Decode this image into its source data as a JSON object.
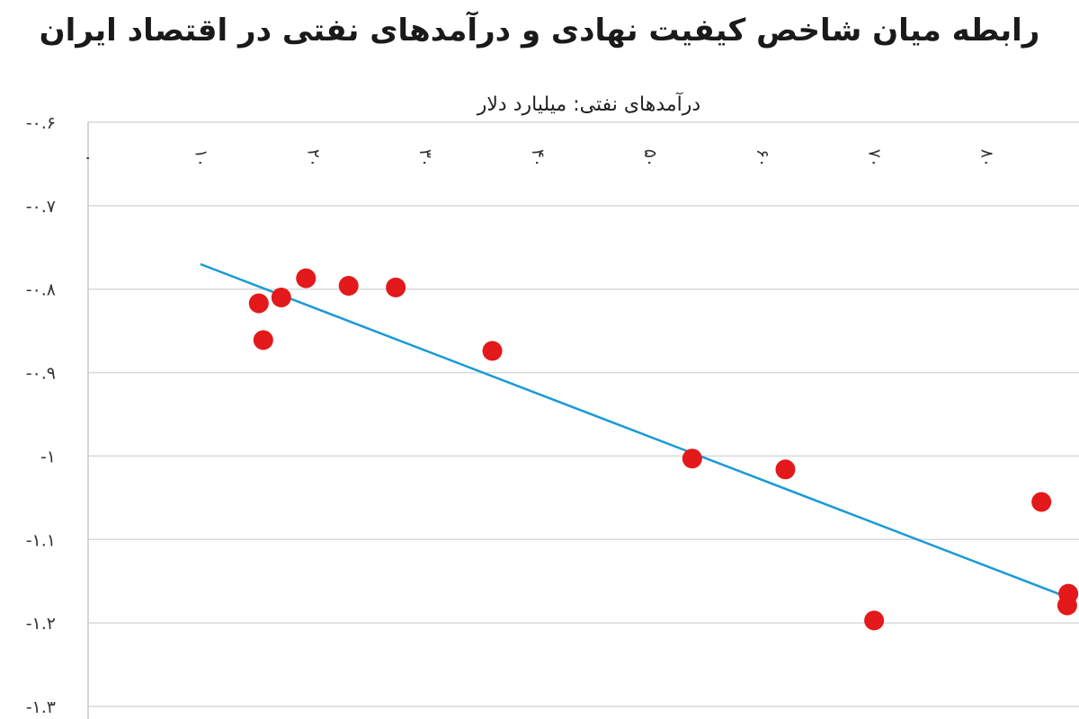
{
  "chart_data": {
    "type": "scatter",
    "title": "رابطه میان شاخص کیفیت نهادی و درآمدهای نفتی در اقتصاد ایران",
    "xlabel": "درآمدهای نفتی: میلیارد دلار",
    "ylabel": "",
    "x_tick_labels": [
      "۰",
      "۱۰",
      "۲۰",
      "۳۰",
      "۴۰",
      "۵۰",
      "۶۰",
      "۷۰",
      "۸۰"
    ],
    "x_ticks": [
      0,
      10,
      20,
      30,
      40,
      50,
      60,
      70,
      80
    ],
    "xlim": [
      0,
      87
    ],
    "y_tick_labels": [
      "-۰.۶",
      "-۰.۷",
      "-۰.۸",
      "-۰.۹",
      "-۱",
      "-۱.۱",
      "-۱.۲",
      "-۱.۳"
    ],
    "y_ticks": [
      -0.6,
      -0.7,
      -0.8,
      -0.9,
      -1.0,
      -1.1,
      -1.2,
      -1.3
    ],
    "ylim": [
      -1.3,
      -0.6
    ],
    "x_axis_position": "top",
    "grid": "horizontal",
    "points": [
      {
        "x": 15.2,
        "y": -0.817
      },
      {
        "x": 15.6,
        "y": -0.861
      },
      {
        "x": 17.2,
        "y": -0.81
      },
      {
        "x": 19.4,
        "y": -0.787
      },
      {
        "x": 23.2,
        "y": -0.796
      },
      {
        "x": 27.4,
        "y": -0.798
      },
      {
        "x": 36.0,
        "y": -0.874
      },
      {
        "x": 53.8,
        "y": -1.003
      },
      {
        "x": 62.1,
        "y": -1.016
      },
      {
        "x": 70.0,
        "y": -1.197
      },
      {
        "x": 84.9,
        "y": -1.055
      },
      {
        "x": 87.3,
        "y": -1.165
      },
      {
        "x": 87.2,
        "y": -1.179
      }
    ],
    "trendline": {
      "x": [
        10,
        87
      ],
      "y": [
        -0.77,
        -1.168
      ]
    },
    "point_color": "#e3191b",
    "trendline_color": "#1a9ad6",
    "grid_color": "#d9d9d9"
  }
}
